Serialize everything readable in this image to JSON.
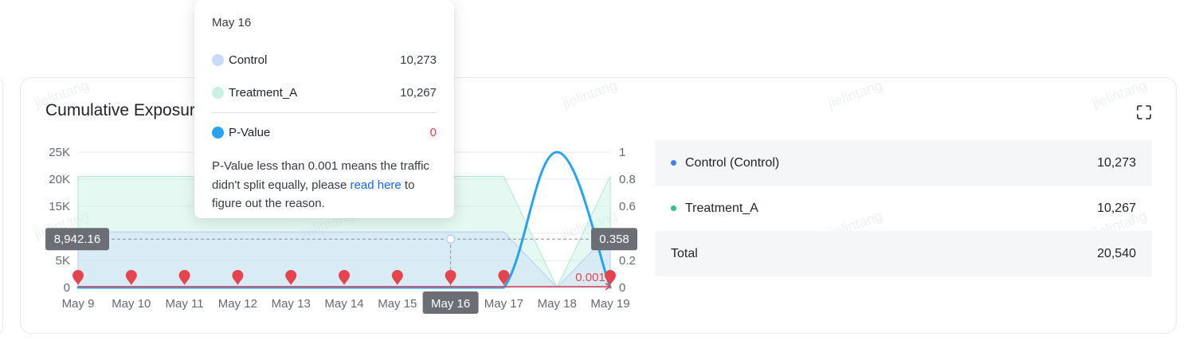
{
  "card": {
    "title": "Cumulative Exposure"
  },
  "watermark": "jielintang",
  "chart_data": {
    "type": "area",
    "categories": [
      "May 9",
      "May 10",
      "May 11",
      "May 12",
      "May 13",
      "May 14",
      "May 15",
      "May 16",
      "May 17",
      "May 18",
      "May 19"
    ],
    "series": [
      {
        "name": "Control",
        "axis": "left",
        "values": [
          10273,
          10273,
          10273,
          10273,
          10273,
          10273,
          10273,
          10273,
          10273,
          0,
          10273
        ]
      },
      {
        "name": "Treatment_A",
        "axis": "left",
        "values": [
          20540,
          20540,
          20540,
          20540,
          20540,
          20540,
          20540,
          20540,
          20540,
          0,
          20540
        ]
      },
      {
        "name": "P-Value",
        "axis": "right",
        "values": [
          0,
          0,
          0,
          0,
          0,
          0,
          0,
          0,
          0,
          1,
          0
        ]
      }
    ],
    "y_left": {
      "ticks": [
        "0",
        "5K",
        "10K",
        "15K",
        "20K",
        "25K"
      ],
      "ylim": [
        0,
        25000
      ]
    },
    "y_right": {
      "ticks": [
        "0",
        "0.2",
        "0.4",
        "0.6",
        "0.8",
        "1"
      ],
      "ylim": [
        0,
        1
      ]
    },
    "crosshair": {
      "x_label": "May 16",
      "left_value": 8942.16,
      "left_label": "8,942.16",
      "right_value": 0.358,
      "right_label": "0.358"
    },
    "threshold": {
      "label": "0.001",
      "value": 0.001
    },
    "grid": true,
    "colors": {
      "control": "#c9dcf7",
      "treatment": "#c8f0e3",
      "pvalue": "#27a3f2",
      "marker": "#e5434d",
      "badge": "#6b6f75"
    }
  },
  "legend": {
    "rows": [
      {
        "label": "Control (Control)",
        "value": "10,273",
        "color": "#3b82f6"
      },
      {
        "label": "Treatment_A",
        "value": "10,267",
        "color": "#2fc48d"
      }
    ],
    "total": {
      "label": "Total",
      "value": "20,540"
    }
  },
  "tooltip": {
    "date": "May 16",
    "rows": [
      {
        "label": "Control",
        "value": "10,273",
        "color": "#c9dcf7"
      },
      {
        "label": "Treatment_A",
        "value": "10,267",
        "color": "#c8f0e3"
      }
    ],
    "pvalue": {
      "label": "P-Value",
      "value": "0",
      "color": "#27a3f2"
    },
    "note_before": "P-Value less than 0.001 means the traffic didn't split equally, please ",
    "link": "read here",
    "note_after": " to figure out the reason."
  },
  "icons": {
    "fullscreen": "fullscreen-icon",
    "marker": "map-pin-icon"
  }
}
